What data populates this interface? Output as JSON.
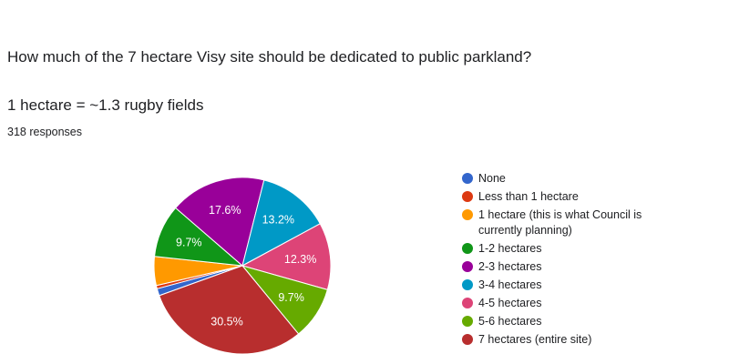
{
  "question": {
    "title": "How much of the 7 hectare Visy site should be dedicated to public parkland?",
    "subtitle": "1 hectare = ~1.3 rugby fields",
    "response_count": "318 responses"
  },
  "chart_data": {
    "type": "pie",
    "title": "How much of the 7 hectare Visy site should be dedicated to public parkland?",
    "categories": [
      "None",
      "Less than 1 hectare",
      "1 hectare (this is what Council is currently planning)",
      "1-2 hectares",
      "2-3 hectares",
      "3-4 hectares",
      "4-5 hectares",
      "5-6 hectares",
      "7 hectares (entire site)"
    ],
    "values": [
      1.3,
      0.6,
      5.3,
      9.7,
      17.6,
      13.2,
      12.3,
      9.7,
      30.5
    ],
    "data_labels": [
      "",
      "",
      "",
      "9.7%",
      "17.6%",
      "13.2%",
      "12.3%",
      "9.7%",
      "30.5%"
    ],
    "colors": [
      "#3366cc",
      "#dc3912",
      "#ff9900",
      "#109618",
      "#990099",
      "#0099c6",
      "#dd4477",
      "#66aa00",
      "#b82e2e"
    ],
    "legend_position": "right"
  }
}
